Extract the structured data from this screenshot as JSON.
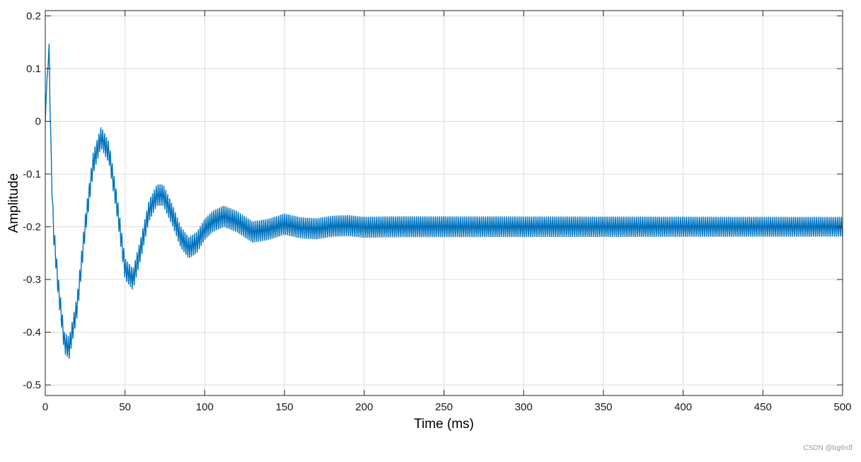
{
  "chart_data": {
    "type": "line",
    "title": "",
    "xlabel": "Time (ms)",
    "ylabel": "Amplitude",
    "xlim": [
      0,
      500
    ],
    "ylim": [
      -0.52,
      0.21
    ],
    "xticks": [
      0,
      50,
      100,
      150,
      200,
      250,
      300,
      350,
      400,
      450,
      500
    ],
    "yticks": [
      0.2,
      0.1,
      0,
      -0.1,
      -0.2,
      -0.3,
      -0.4,
      -0.5
    ],
    "xtick_labels": [
      "0",
      "50",
      "100",
      "150",
      "200",
      "250",
      "300",
      "350",
      "400",
      "450",
      "500"
    ],
    "ytick_labels": [
      "0.2",
      "0.1",
      "0",
      "-0.1",
      "-0.2",
      "-0.3",
      "-0.4",
      "-0.5"
    ],
    "grid": true,
    "box": true,
    "legend": "none",
    "series": [
      {
        "color": "#0072bd",
        "line_width": 1.4,
        "envelope_x": [
          0,
          1,
          2.5,
          3.5,
          5,
          8,
          12,
          15,
          20,
          25,
          30,
          35,
          40,
          45,
          50,
          55,
          60,
          65,
          70,
          74,
          80,
          85,
          90,
          95,
          100,
          105,
          112,
          120,
          130,
          140,
          150,
          160,
          170,
          180,
          190,
          200,
          220,
          250,
          300,
          400,
          500
        ],
        "envelope_y": [
          0,
          0.08,
          0.13,
          -0.05,
          -0.2,
          -0.31,
          -0.42,
          -0.43,
          -0.35,
          -0.2,
          -0.08,
          -0.03,
          -0.06,
          -0.16,
          -0.28,
          -0.3,
          -0.24,
          -0.17,
          -0.14,
          -0.14,
          -0.18,
          -0.22,
          -0.24,
          -0.23,
          -0.205,
          -0.19,
          -0.18,
          -0.19,
          -0.21,
          -0.205,
          -0.195,
          -0.202,
          -0.204,
          -0.199,
          -0.198,
          -0.201,
          -0.2,
          -0.2,
          -0.2,
          -0.2,
          -0.2
        ],
        "ripple_period_ms": 1.2,
        "ripple_amplitude": [
          0.02,
          0.018
        ]
      }
    ]
  },
  "watermark": "CSDN @bg6rdf"
}
